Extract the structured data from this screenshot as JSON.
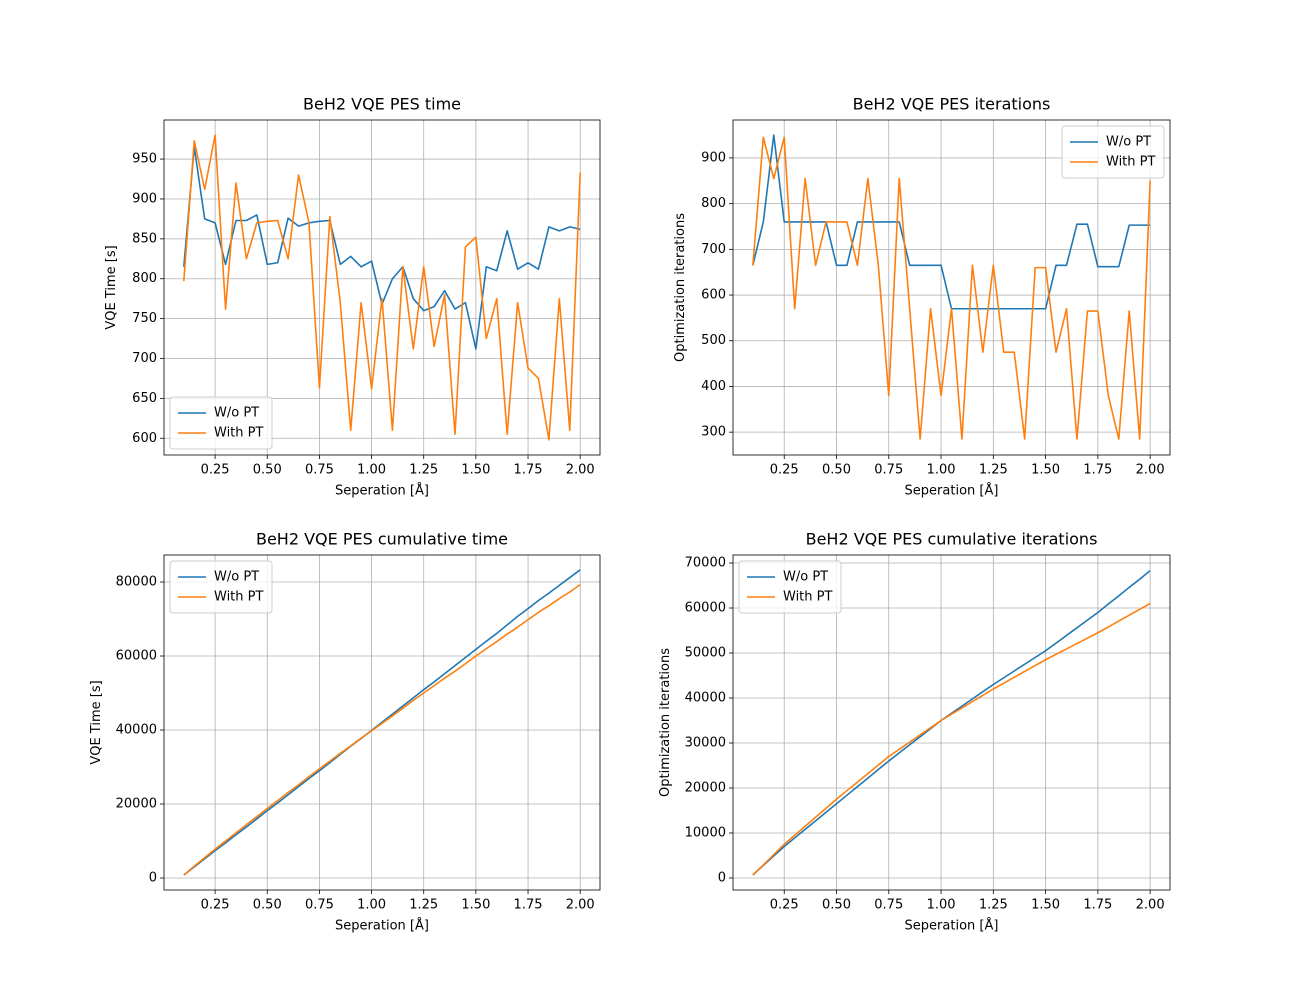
{
  "chart_data": [
    {
      "type": "line",
      "title": "BeH2 VQE PES time",
      "xlabel": "Seperation [Å]",
      "ylabel": "VQE Time [s]",
      "x": [
        0.1,
        0.15,
        0.2,
        0.25,
        0.3,
        0.35,
        0.4,
        0.45,
        0.5,
        0.55,
        0.6,
        0.65,
        0.7,
        0.75,
        0.8,
        0.85,
        0.9,
        0.95,
        1.0,
        1.05,
        1.1,
        1.15,
        1.2,
        1.25,
        1.3,
        1.35,
        1.4,
        1.45,
        1.5,
        1.55,
        1.6,
        1.65,
        1.7,
        1.75,
        1.8,
        1.85,
        1.9,
        1.95,
        2.0
      ],
      "series": [
        {
          "name": "W/o PT",
          "color": "#1f77b4",
          "values": [
            815,
            965,
            875,
            870,
            818,
            873,
            873,
            880,
            818,
            820,
            876,
            866,
            870,
            872,
            873,
            818,
            828,
            815,
            822,
            768,
            800,
            815,
            775,
            760,
            765,
            785,
            762,
            770,
            712,
            815,
            810,
            860,
            812,
            820,
            812,
            865,
            860,
            865,
            862
          ]
        },
        {
          "name": "With PT",
          "color": "#ff7f0e",
          "values": [
            797,
            973,
            912,
            980,
            762,
            920,
            825,
            870,
            872,
            873,
            825,
            930,
            870,
            663,
            878,
            770,
            610,
            770,
            662,
            775,
            610,
            815,
            712,
            815,
            715,
            780,
            605,
            840,
            852,
            725,
            775,
            605,
            770,
            688,
            675,
            598,
            775,
            610,
            933
          ]
        }
      ],
      "xlim": [
        0.005,
        2.095
      ],
      "xticks": [
        0.25,
        {
          "value": 0.5,
          "label": "0.50"
        },
        0.75,
        {
          "value": 1.0,
          "label": "1.00"
        },
        1.25,
        {
          "value": 1.5,
          "label": "1.50"
        },
        1.75,
        {
          "value": 2.0,
          "label": "2.00"
        }
      ],
      "ylim": [
        579,
        999
      ],
      "yticks": [
        600,
        650,
        700,
        750,
        800,
        850,
        900,
        950
      ],
      "grid": true,
      "legend": "lower left"
    },
    {
      "type": "line",
      "title": "BeH2 VQE PES iterations",
      "xlabel": "Seperation [Å]",
      "ylabel": "Optimization iterations",
      "x": [
        0.1,
        0.15,
        0.2,
        0.25,
        0.3,
        0.35,
        0.4,
        0.45,
        0.5,
        0.55,
        0.6,
        0.65,
        0.7,
        0.75,
        0.8,
        0.85,
        0.9,
        0.95,
        1.0,
        1.05,
        1.1,
        1.15,
        1.2,
        1.25,
        1.3,
        1.35,
        1.4,
        1.45,
        1.5,
        1.55,
        1.6,
        1.65,
        1.7,
        1.75,
        1.8,
        1.85,
        1.9,
        1.95,
        2.0
      ],
      "series": [
        {
          "name": "W/o PT",
          "color": "#1f77b4",
          "values": [
            665,
            760,
            950,
            760,
            760,
            760,
            760,
            760,
            665,
            665,
            760,
            760,
            760,
            760,
            760,
            665,
            665,
            665,
            665,
            570,
            570,
            570,
            570,
            570,
            570,
            570,
            570,
            570,
            570,
            665,
            665,
            755,
            755,
            662,
            662,
            662,
            753,
            753,
            753
          ]
        },
        {
          "name": "With PT",
          "color": "#ff7f0e",
          "values": [
            665,
            945,
            855,
            945,
            570,
            855,
            665,
            760,
            760,
            760,
            665,
            855,
            665,
            380,
            855,
            570,
            285,
            570,
            380,
            570,
            285,
            665,
            475,
            665,
            475,
            475,
            285,
            660,
            660,
            475,
            570,
            285,
            565,
            565,
            380,
            285,
            565,
            285,
            850
          ]
        }
      ],
      "xlim": [
        0.005,
        2.095
      ],
      "xticks": [
        0.25,
        {
          "value": 0.5,
          "label": "0.50"
        },
        0.75,
        {
          "value": 1.0,
          "label": "1.00"
        },
        1.25,
        {
          "value": 1.5,
          "label": "1.50"
        },
        1.75,
        {
          "value": 2.0,
          "label": "2.00"
        }
      ],
      "ylim": [
        250,
        983
      ],
      "yticks": [
        300,
        400,
        500,
        600,
        700,
        800,
        900
      ],
      "grid": true,
      "legend": "upper right"
    },
    {
      "type": "line",
      "title": "BeH2 VQE PES cumulative time",
      "xlabel": "Seperation [Å]",
      "ylabel": "VQE Time [s]",
      "x": [
        0.1,
        0.15,
        0.2,
        0.25,
        0.3,
        0.35,
        0.4,
        0.45,
        0.5,
        0.55,
        0.6,
        0.65,
        0.7,
        0.75,
        0.8,
        0.85,
        0.9,
        0.95,
        1.0,
        1.05,
        1.1,
        1.15,
        1.2,
        1.25,
        1.3,
        1.35,
        1.4,
        1.45,
        1.5,
        1.55,
        1.6,
        1.65,
        1.7,
        1.75,
        1.8,
        1.85,
        1.9,
        1.95,
        2.0
      ],
      "series": [
        {
          "name": "W/o PT",
          "color": "#1f77b4",
          "values": [
            815,
            3000,
            5200,
            7400,
            9500,
            11700,
            13800,
            16000,
            18200,
            20300,
            22500,
            24700,
            26900,
            29000,
            31200,
            33400,
            35600,
            37700,
            39900,
            42100,
            44300,
            46500,
            48700,
            50900,
            53000,
            55200,
            57400,
            59600,
            61800,
            64000,
            66100,
            68400,
            70700,
            72800,
            75000,
            77000,
            79100,
            81200,
            83300
          ]
        },
        {
          "name": "With PT",
          "color": "#ff7f0e",
          "values": [
            797,
            3200,
            5500,
            7800,
            10000,
            12200,
            14400,
            16600,
            18800,
            20900,
            23100,
            25200,
            27400,
            29500,
            31600,
            33700,
            35700,
            37800,
            39800,
            41800,
            43800,
            45900,
            48000,
            50000,
            52000,
            54000,
            55900,
            57900,
            60000,
            62000,
            63900,
            65900,
            67800,
            69800,
            71800,
            73600,
            75500,
            77300,
            79300
          ]
        }
      ],
      "xlim": [
        0.005,
        2.095
      ],
      "xticks": [
        0.25,
        {
          "value": 0.5,
          "label": "0.50"
        },
        0.75,
        {
          "value": 1.0,
          "label": "1.00"
        },
        1.25,
        {
          "value": 1.5,
          "label": "1.50"
        },
        1.75,
        {
          "value": 2.0,
          "label": "2.00"
        }
      ],
      "ylim": [
        -3240,
        87300
      ],
      "yticks": [
        0,
        20000,
        40000,
        60000,
        80000
      ],
      "grid": true,
      "legend": "upper left"
    },
    {
      "type": "line",
      "title": "BeH2 VQE PES cumulative iterations",
      "xlabel": "Seperation [Å]",
      "ylabel": "Optimization iterations",
      "x": [
        0.1,
        0.15,
        0.2,
        0.25,
        0.3,
        0.35,
        0.4,
        0.45,
        0.5,
        0.55,
        0.6,
        0.65,
        0.7,
        0.75,
        0.8,
        0.85,
        0.9,
        0.95,
        1.0,
        1.05,
        1.1,
        1.15,
        1.2,
        1.25,
        1.3,
        1.35,
        1.4,
        1.45,
        1.5,
        1.55,
        1.6,
        1.65,
        1.7,
        1.75,
        1.8,
        1.85,
        1.9,
        1.95,
        2.0
      ],
      "series": [
        {
          "name": "W/o PT",
          "color": "#1f77b4",
          "values": [
            665,
            2800,
            4900,
            7000,
            8900,
            10800,
            12700,
            14600,
            16500,
            18400,
            20300,
            22200,
            24100,
            26000,
            27800,
            29600,
            31400,
            33200,
            35000,
            36600,
            38200,
            39800,
            41400,
            43000,
            44500,
            46000,
            47500,
            49000,
            50500,
            52200,
            53900,
            55600,
            57300,
            59000,
            60900,
            62700,
            64600,
            66400,
            68300
          ]
        },
        {
          "name": "With PT",
          "color": "#ff7f0e",
          "values": [
            665,
            2900,
            5200,
            7500,
            9500,
            11500,
            13500,
            15500,
            17500,
            19400,
            21300,
            23200,
            25100,
            27000,
            28600,
            30200,
            31800,
            33400,
            35000,
            36400,
            37800,
            39200,
            40600,
            42000,
            43300,
            44600,
            45900,
            47200,
            48500,
            49700,
            50900,
            52100,
            53300,
            54500,
            55800,
            57100,
            58400,
            59700,
            61000
          ]
        }
      ],
      "xlim": [
        0.005,
        2.095
      ],
      "xticks": [
        0.25,
        {
          "value": 0.5,
          "label": "0.50"
        },
        0.75,
        {
          "value": 1.0,
          "label": "1.00"
        },
        1.25,
        {
          "value": 1.5,
          "label": "1.50"
        },
        1.75,
        {
          "value": 2.0,
          "label": "2.00"
        }
      ],
      "ylim": [
        -2670,
        71780
      ],
      "yticks": [
        0,
        10000,
        20000,
        30000,
        40000,
        50000,
        60000,
        70000
      ],
      "grid": true,
      "legend": "upper left"
    }
  ]
}
